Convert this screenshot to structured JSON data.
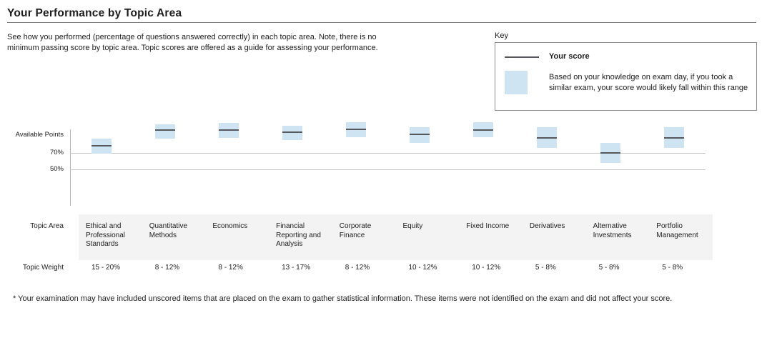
{
  "page": {
    "title": "Your Performance by Topic Area",
    "description": "See how you performed (percentage of questions answered correctly) in each topic area. Note, there is no minimum passing score by topic area. Topic scores are offered as a guide for assessing your performance.",
    "footnote": "* Your examination may have included unscored items that are placed on the exam to gather statistical information. These items were not identified on the exam and did not affect your score."
  },
  "key": {
    "label": "Key",
    "score_label": "Your score",
    "range_description": "Based on your knowledge on exam day, if you took a similar exam, your score would likely fall within this range"
  },
  "table": {
    "topic_area_label": "Topic Area",
    "topic_weight_label": "Topic Weight"
  },
  "colors": {
    "range_fill": "#cfe4f2",
    "score_line": "#54585d",
    "gridline": "#c9c9c9",
    "axis_line": "#b3b3b3",
    "table_band": "#f3f3f3"
  },
  "chart_data": {
    "type": "range-bar",
    "title": "Your Performance by Topic Area",
    "y_axis": {
      "top_label": "Available Points",
      "tick_labels": [
        "70%",
        "50%"
      ],
      "tick_values": [
        70,
        50
      ],
      "gridlines": true
    },
    "categories": [
      "Ethical and Professional Standards",
      "Quantitative Methods",
      "Economics",
      "Financial Reporting and Analysis",
      "Corporate Finance",
      "Equity",
      "Fixed Income",
      "Derivatives",
      "Alternative Investments",
      "Portfolio Management"
    ],
    "topic_weights": [
      "15 - 20%",
      "8 - 12%",
      "8 - 12%",
      "13 - 17%",
      "8 - 12%",
      "10 - 12%",
      "10 - 12%",
      "5 - 8%",
      "5 - 8%",
      "5 - 8%"
    ],
    "series": [
      {
        "name": "Your score (estimated %)",
        "values": [
          79,
          99,
          99,
          96,
          100,
          94,
          99,
          89,
          70,
          89
        ]
      },
      {
        "name": "Likely range low (estimated %)",
        "values": [
          69,
          88,
          89,
          86,
          90,
          83,
          90,
          76,
          57,
          76
        ]
      },
      {
        "name": "Likely range high (estimated %)",
        "values": [
          88,
          106,
          108,
          105,
          109,
          103,
          109,
          103,
          83,
          103
        ]
      }
    ],
    "legend_position": "top-right"
  }
}
